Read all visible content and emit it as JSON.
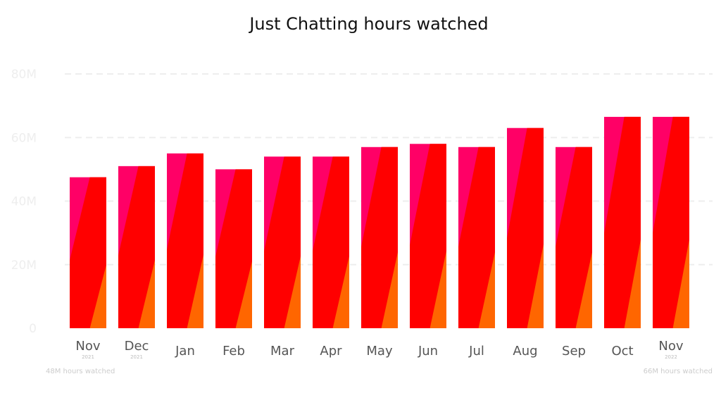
{
  "chart_data": {
    "type": "bar",
    "title": "Just Chatting hours watched",
    "categories": [
      "Nov",
      "Dec",
      "Jan",
      "Feb",
      "Mar",
      "Apr",
      "May",
      "Jun",
      "Jul",
      "Aug",
      "Sep",
      "Oct",
      "Nov"
    ],
    "category_years": [
      "2021",
      "2021",
      "",
      "",
      "",
      "",
      "",
      "",
      "",
      "",
      "",
      "",
      "2022"
    ],
    "values": [
      47.5,
      51,
      55,
      50,
      54,
      54,
      57,
      58,
      57,
      63,
      57,
      66.5,
      66.5
    ],
    "value_unit": "M",
    "ylim": [
      0,
      80
    ],
    "yticks": [
      "0",
      "20M",
      "40M",
      "60M",
      "80M"
    ],
    "grid": true,
    "xlabel": "",
    "ylabel": "",
    "footer_left": "48M hours watched",
    "footer_right": "66M hours watched",
    "colors": {
      "pink": "#ff0066",
      "red": "#ff0000",
      "orange": "#ff6600",
      "grid": "#eeeeee"
    }
  }
}
